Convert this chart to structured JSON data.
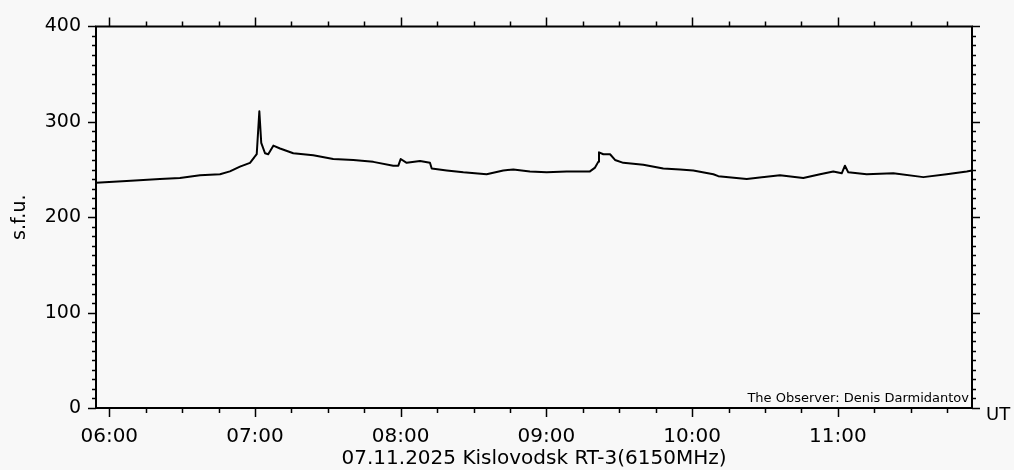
{
  "chart_data": {
    "type": "line",
    "title": "07.11.2025 Kislovodsk RT-3(6150MHz)",
    "xlabel": "UT",
    "ylabel": "s.f.u.",
    "annotations": [
      "The Observer: Denis Darmidantov"
    ],
    "x": [
      5.909,
      6.119,
      6.348,
      6.485,
      6.623,
      6.76,
      6.828,
      6.897,
      6.966,
      7.012,
      7.03,
      7.043,
      7.069,
      7.091,
      7.126,
      7.172,
      7.263,
      7.4,
      7.537,
      7.675,
      7.812,
      7.949,
      7.984,
      8.0,
      8.041,
      8.133,
      8.201,
      8.213,
      8.316,
      8.43,
      8.59,
      8.704,
      8.773,
      8.887,
      9.002,
      9.139,
      9.299,
      9.334,
      9.356,
      9.361,
      9.391,
      9.437,
      9.471,
      9.528,
      9.665,
      9.802,
      9.917,
      10.008,
      10.146,
      10.18,
      10.375,
      10.603,
      10.763,
      10.878,
      10.969,
      11.027,
      11.049,
      11.072,
      11.198,
      11.381,
      11.587,
      11.747,
      11.885,
      11.921
    ],
    "series": [
      {
        "color": "#000000",
        "values": [
          236,
          238,
          240,
          241,
          244,
          245,
          248,
          253,
          257,
          266,
          311,
          278,
          267,
          266,
          275,
          272,
          267,
          265,
          261,
          260,
          258,
          254,
          254,
          261,
          257,
          259,
          257,
          251,
          249,
          247,
          245,
          249,
          250,
          248,
          247,
          248,
          248,
          252,
          258,
          268,
          266,
          266,
          260,
          257,
          255,
          251,
          250,
          249,
          245,
          243,
          240,
          244,
          241,
          245,
          248,
          246,
          254,
          247,
          245,
          246,
          242,
          245,
          248,
          249
        ]
      }
    ],
    "xlim": [
      5.909,
      11.921
    ],
    "xticks": [
      {
        "value": 6,
        "label": "06:00"
      },
      {
        "value": 6.25,
        "label": null
      },
      {
        "value": 6.5,
        "label": null
      },
      {
        "value": 6.75,
        "label": null
      },
      {
        "value": 7,
        "label": "07:00"
      },
      {
        "value": 7.25,
        "label": null
      },
      {
        "value": 7.5,
        "label": null
      },
      {
        "value": 7.75,
        "label": null
      },
      {
        "value": 8,
        "label": "08:00"
      },
      {
        "value": 8.25,
        "label": null
      },
      {
        "value": 8.5,
        "label": null
      },
      {
        "value": 8.75,
        "label": null
      },
      {
        "value": 9,
        "label": "09:00"
      },
      {
        "value": 9.25,
        "label": null
      },
      {
        "value": 9.5,
        "label": null
      },
      {
        "value": 9.75,
        "label": null
      },
      {
        "value": 10,
        "label": "10:00"
      },
      {
        "value": 10.25,
        "label": null
      },
      {
        "value": 10.5,
        "label": null
      },
      {
        "value": 10.75,
        "label": null
      },
      {
        "value": 11,
        "label": "11:00"
      },
      {
        "value": 11.25,
        "label": null
      },
      {
        "value": 11.5,
        "label": null
      },
      {
        "value": 11.75,
        "label": null
      }
    ],
    "ylim": [
      0,
      400
    ],
    "yticks": [
      0,
      {
        "value": 10,
        "label": null
      },
      {
        "value": 20,
        "label": null
      },
      {
        "value": 30,
        "label": null
      },
      {
        "value": 40,
        "label": null
      },
      {
        "value": 50,
        "label": null
      },
      {
        "value": 60,
        "label": null
      },
      {
        "value": 70,
        "label": null
      },
      {
        "value": 80,
        "label": null
      },
      {
        "value": 90,
        "label": null
      },
      100,
      {
        "value": 110,
        "label": null
      },
      {
        "value": 120,
        "label": null
      },
      {
        "value": 130,
        "label": null
      },
      {
        "value": 140,
        "label": null
      },
      {
        "value": 150,
        "label": null
      },
      {
        "value": 160,
        "label": null
      },
      {
        "value": 170,
        "label": null
      },
      {
        "value": 180,
        "label": null
      },
      {
        "value": 190,
        "label": null
      },
      200,
      {
        "value": 210,
        "label": null
      },
      {
        "value": 220,
        "label": null
      },
      {
        "value": 230,
        "label": null
      },
      {
        "value": 240,
        "label": null
      },
      {
        "value": 250,
        "label": null
      },
      {
        "value": 260,
        "label": null
      },
      {
        "value": 270,
        "label": null
      },
      {
        "value": 280,
        "label": null
      },
      {
        "value": 290,
        "label": null
      },
      300,
      {
        "value": 310,
        "label": null
      },
      {
        "value": 320,
        "label": null
      },
      {
        "value": 330,
        "label": null
      },
      {
        "value": 340,
        "label": null
      },
      {
        "value": 350,
        "label": null
      },
      {
        "value": 360,
        "label": null
      },
      {
        "value": 370,
        "label": null
      },
      {
        "value": 380,
        "label": null
      },
      {
        "value": 390,
        "label": null
      },
      400
    ]
  }
}
